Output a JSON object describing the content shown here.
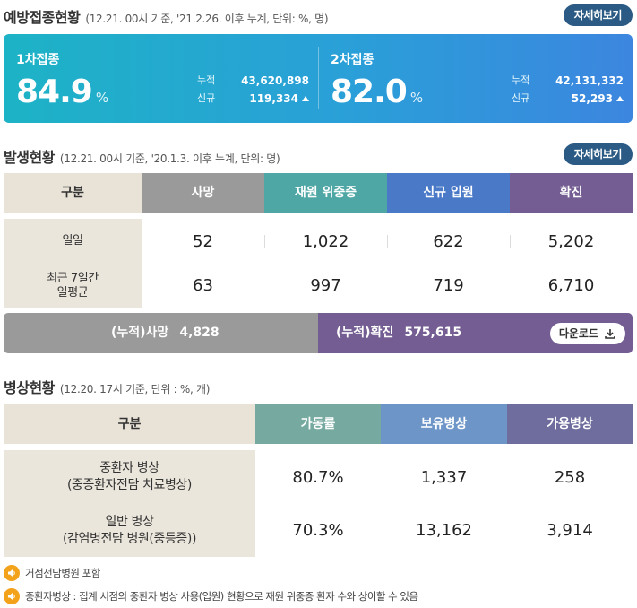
{
  "vaccination": {
    "title": "예방접종현황",
    "subtitle": "(12.21. 00시 기준, '21.2.26. 이후 누계, 단위: %, 명)",
    "detail_label": "자세히보기",
    "doses": [
      {
        "label": "1차접종",
        "percent": "84.9",
        "unit": "%",
        "cum_label": "누적",
        "cum_value": "43,620,898",
        "new_label": "신규",
        "new_value": "119,334"
      },
      {
        "label": "2차접종",
        "percent": "82.0",
        "unit": "%",
        "cum_label": "누적",
        "cum_value": "42,131,332",
        "new_label": "신규",
        "new_value": "52,293"
      }
    ]
  },
  "occurrence": {
    "title": "발생현황",
    "subtitle": "(12.21. 00시 기준, '20.1.3. 이후 누계, 단위: 명)",
    "detail_label": "자세히보기",
    "headers": [
      "구분",
      "사망",
      "재원 위중증",
      "신규 입원",
      "확진"
    ],
    "header_colors": [
      "#e9e3d7",
      "#9a9a9a",
      "#4ea7a5",
      "#4a79c7",
      "#735d92"
    ],
    "rows": [
      {
        "label": "일일",
        "values": [
          "52",
          "1,022",
          "622",
          "5,202"
        ]
      },
      {
        "label": "최근 7일간\n일평균",
        "values": [
          "63",
          "997",
          "719",
          "6,710"
        ]
      }
    ],
    "cumulative": {
      "death_label": "(누적)사망",
      "death_value": "4,828",
      "confirmed_label": "(누적)확진",
      "confirmed_value": "575,615",
      "download_label": "다운로드"
    }
  },
  "beds": {
    "title": "병상현황",
    "subtitle": "(12.20. 17시 기준, 단위 : %, 개)",
    "headers": [
      "구분",
      "가동률",
      "보유병상",
      "가용병상"
    ],
    "header_colors": [
      "#e9e3d7",
      "#76aaa0",
      "#6d95c8",
      "#6f6d9e"
    ],
    "rows": [
      {
        "label": "중환자 병상\n(중증환자전담 치료병상)",
        "values": [
          "80.7%",
          "1,337",
          "258"
        ]
      },
      {
        "label": "일반 병상\n(감염병전담 병원(중등증))",
        "values": [
          "70.3%",
          "13,162",
          "3,914"
        ]
      }
    ]
  },
  "notes": [
    {
      "icon": "speaker-icon",
      "text": "거점전담병원 포함"
    },
    {
      "icon": "speaker-icon",
      "text": "중환자병상 : 집계 시점의 중환자 병상 사용(입원) 현황으로 재원 위중증 환자 수와 상이할 수 있음"
    }
  ]
}
